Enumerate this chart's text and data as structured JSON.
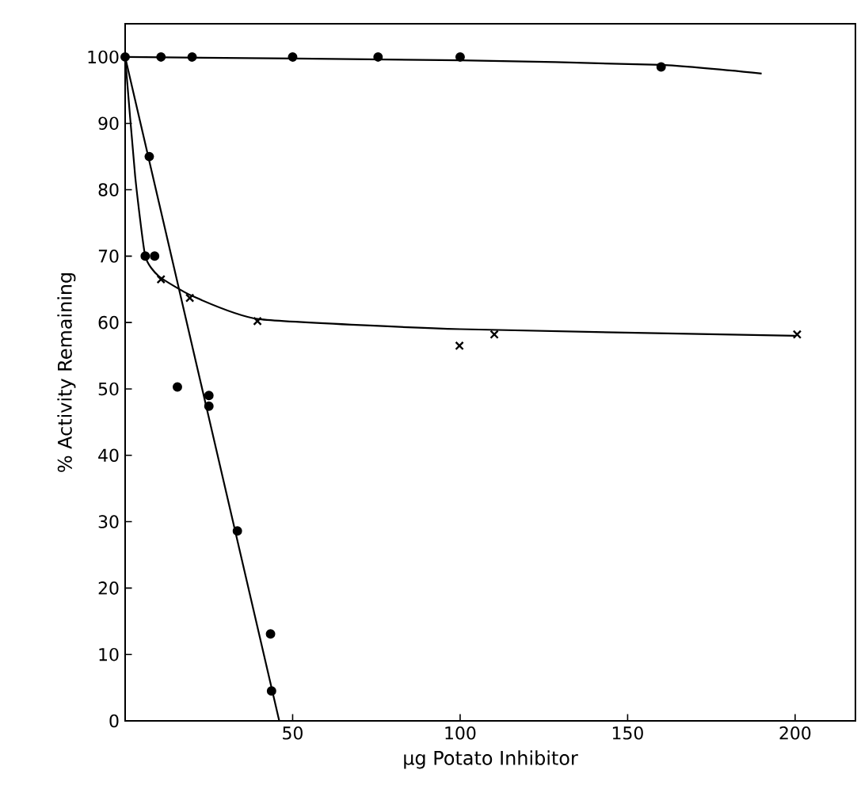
{
  "chart_data": {
    "type": "scatter",
    "xlabel": "µg Potato Inhibitor",
    "ylabel": "% Activity Remaining",
    "xlim": [
      0,
      218
    ],
    "ylim": [
      0,
      105
    ],
    "xticks": [
      50,
      100,
      150,
      200
    ],
    "yticks": [
      0,
      10,
      20,
      30,
      40,
      50,
      60,
      70,
      80,
      90,
      100
    ],
    "grid": false,
    "series": [
      {
        "marker": "circle",
        "color": "#000000",
        "x": [
          0,
          10.7,
          20,
          50,
          75.5,
          100,
          160
        ],
        "values": [
          100,
          100,
          100,
          100,
          100,
          100,
          98.5
        ]
      },
      {
        "marker": "circle",
        "color": "#000000",
        "x": [
          6,
          8.8,
          7.2,
          15.6,
          25,
          25,
          33.5,
          43.4,
          43.7
        ],
        "values": [
          70,
          70,
          85,
          50.3,
          49,
          47.4,
          28.6,
          13.1,
          4.5
        ]
      },
      {
        "marker": "cross",
        "color": "#000000",
        "x": [
          10.7,
          19.3,
          39.5,
          99.8,
          110.2,
          200.6
        ],
        "values": [
          66.5,
          63.7,
          60.2,
          56.5,
          58.2,
          58.2
        ]
      },
      {
        "type": "line",
        "line_style": "solid",
        "color": "#000000",
        "x": [
          0,
          100,
          160,
          190
        ],
        "values": [
          100,
          99.5,
          98.8,
          97.5
        ]
      },
      {
        "type": "line",
        "line_style": "solid",
        "color": "#000000",
        "x": [
          0,
          46
        ],
        "values": [
          100,
          0
        ]
      },
      {
        "type": "line",
        "line_style": "solid",
        "color": "#000000",
        "x": [
          0,
          3,
          6,
          10,
          20,
          40,
          100,
          200
        ],
        "values": [
          100,
          82,
          70,
          67,
          64,
          60.5,
          59,
          58
        ]
      }
    ]
  }
}
